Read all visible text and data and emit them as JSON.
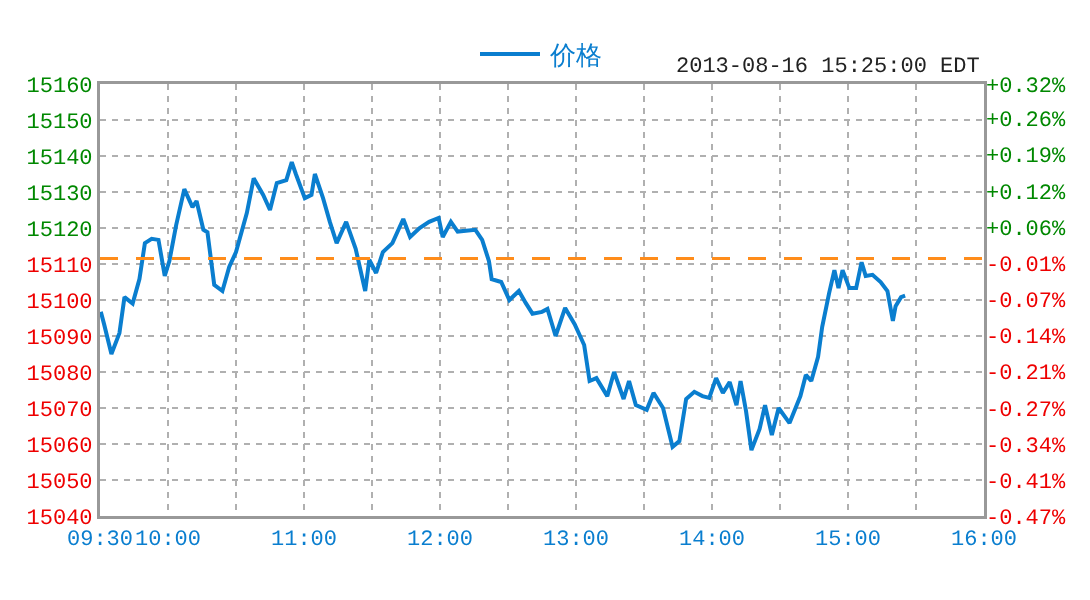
{
  "chart_data": {
    "type": "line",
    "annotations": [
      "2013-08-16 15:25:00 EDT"
    ],
    "x": [
      9.506,
      9.53,
      9.584,
      9.643,
      9.68,
      9.74,
      9.79,
      9.83,
      9.88,
      9.93,
      9.976,
      10.01,
      10.06,
      10.12,
      10.18,
      10.21,
      10.26,
      10.29,
      10.34,
      10.4,
      10.45,
      10.5,
      10.58,
      10.63,
      10.7,
      10.75,
      10.8,
      10.87,
      10.91,
      10.94,
      11.006,
      11.055,
      11.08,
      11.14,
      11.19,
      11.24,
      11.31,
      11.38,
      11.45,
      11.48,
      11.53,
      11.58,
      11.65,
      11.73,
      11.78,
      11.85,
      11.92,
      11.99,
      12.02,
      12.08,
      12.13,
      12.26,
      12.31,
      12.36,
      12.38,
      12.45,
      12.51,
      12.58,
      12.63,
      12.68,
      12.75,
      12.79,
      12.85,
      12.92,
      12.99,
      13.06,
      13.1,
      13.15,
      13.23,
      13.28,
      13.35,
      13.39,
      13.44,
      13.52,
      13.57,
      13.64,
      13.71,
      13.76,
      13.81,
      13.87,
      13.93,
      13.98,
      14.03,
      14.08,
      14.13,
      14.18,
      14.21,
      14.25,
      14.29,
      14.35,
      14.39,
      14.44,
      14.49,
      14.57,
      14.65,
      14.69,
      14.73,
      14.78,
      14.81,
      14.86,
      14.9,
      14.93,
      14.96,
      15.01,
      15.06,
      15.1,
      15.13,
      15.18,
      15.24,
      15.29,
      15.33,
      15.35,
      15.39,
      15.42
    ],
    "series": [
      {
        "name": "价格",
        "color": "#0a7ecf",
        "values": [
          15096.7,
          15093.3,
          15085,
          15090.8,
          15100.8,
          15099,
          15105.8,
          15115.8,
          15117,
          15116.7,
          15106.7,
          15110.8,
          15120.8,
          15130.8,
          15125.8,
          15127.5,
          15119.5,
          15118.8,
          15104.2,
          15102.5,
          15109.2,
          15113.3,
          15124.2,
          15133.8,
          15129.2,
          15125,
          15132.5,
          15133.3,
          15138.3,
          15135,
          15128.3,
          15129.2,
          15135,
          15128.3,
          15121.7,
          15115.8,
          15121.7,
          15114.2,
          15102.5,
          15111.2,
          15107.5,
          15113.3,
          15115.8,
          15122.5,
          15117.5,
          15120,
          15121.7,
          15122.8,
          15117.5,
          15121.7,
          15119,
          15119.5,
          15116.7,
          15110.8,
          15105.8,
          15105,
          15100,
          15102.5,
          15099.2,
          15096.2,
          15096.7,
          15097.5,
          15090,
          15097.8,
          15093.3,
          15087.5,
          15077.5,
          15078.3,
          15073.3,
          15080,
          15072.5,
          15077.5,
          15070.8,
          15069.5,
          15074.2,
          15070,
          15059.2,
          15060.8,
          15072.5,
          15074.5,
          15073.3,
          15072.8,
          15078.3,
          15074.2,
          15077.2,
          15070.8,
          15077.5,
          15069.2,
          15058.3,
          15064.2,
          15070.8,
          15062.5,
          15070,
          15065.8,
          15073.3,
          15079.2,
          15077.5,
          15084.2,
          15092.5,
          15101.7,
          15108.3,
          15103.3,
          15108.3,
          15103.3,
          15103.3,
          15110.5,
          15106.7,
          15107,
          15105,
          15102.5,
          15094.2,
          15098.3,
          15100.8,
          15101.2
        ]
      }
    ],
    "xlim": [
      9.5,
      16
    ],
    "xticks": [
      {
        "value": 9.5,
        "label": "09:30"
      },
      {
        "value": 10,
        "label": "10:00"
      },
      {
        "value": 10.5,
        "label": null
      },
      {
        "value": 11,
        "label": "11:00"
      },
      {
        "value": 11.5,
        "label": null
      },
      {
        "value": 12,
        "label": "12:00"
      },
      {
        "value": 12.5,
        "label": null
      },
      {
        "value": 13,
        "label": "13:00"
      },
      {
        "value": 13.5,
        "label": null
      },
      {
        "value": 14,
        "label": "14:00"
      },
      {
        "value": 14.5,
        "label": null
      },
      {
        "value": 15,
        "label": "15:00"
      },
      {
        "value": 15.5,
        "label": null
      },
      {
        "value": 16,
        "label": "16:00"
      }
    ],
    "ylim": [
      15040,
      15160
    ],
    "yticks": [
      15040,
      15050,
      15060,
      15070,
      15080,
      15090,
      15100,
      15110,
      15120,
      15130,
      15140,
      15150,
      15160
    ],
    "y2lim": [
      -0.4718,
      0.3192
    ],
    "y2ticks": [
      {
        "value": -0.4718,
        "label": "-0.47%"
      },
      {
        "value": -0.4058,
        "label": "-0.41%"
      },
      {
        "value": -0.3398,
        "label": "-0.34%"
      },
      {
        "value": -0.2738,
        "label": "-0.27%"
      },
      {
        "value": -0.2073,
        "label": "-0.21%"
      },
      {
        "value": -0.1411,
        "label": "-0.14%"
      },
      {
        "value": -0.0749,
        "label": "-0.07%"
      },
      {
        "value": -0.0087,
        "label": "-0.01%"
      },
      {
        "value": 0.0574,
        "label": "+0.06%"
      },
      {
        "value": 0.1236,
        "label": "+0.12%"
      },
      {
        "value": 0.1898,
        "label": "+0.19%"
      },
      {
        "value": 0.256,
        "label": "+0.26%"
      },
      {
        "value": 0.3192,
        "label": "+0.32%"
      }
    ],
    "ref_lines": [
      {
        "axis": "y",
        "value": 15111.5,
        "color": "#ff8c1a",
        "line_style": "dashed"
      }
    ],
    "grid": true,
    "legend": "top",
    "marker": "none",
    "line_style": "solid"
  }
}
